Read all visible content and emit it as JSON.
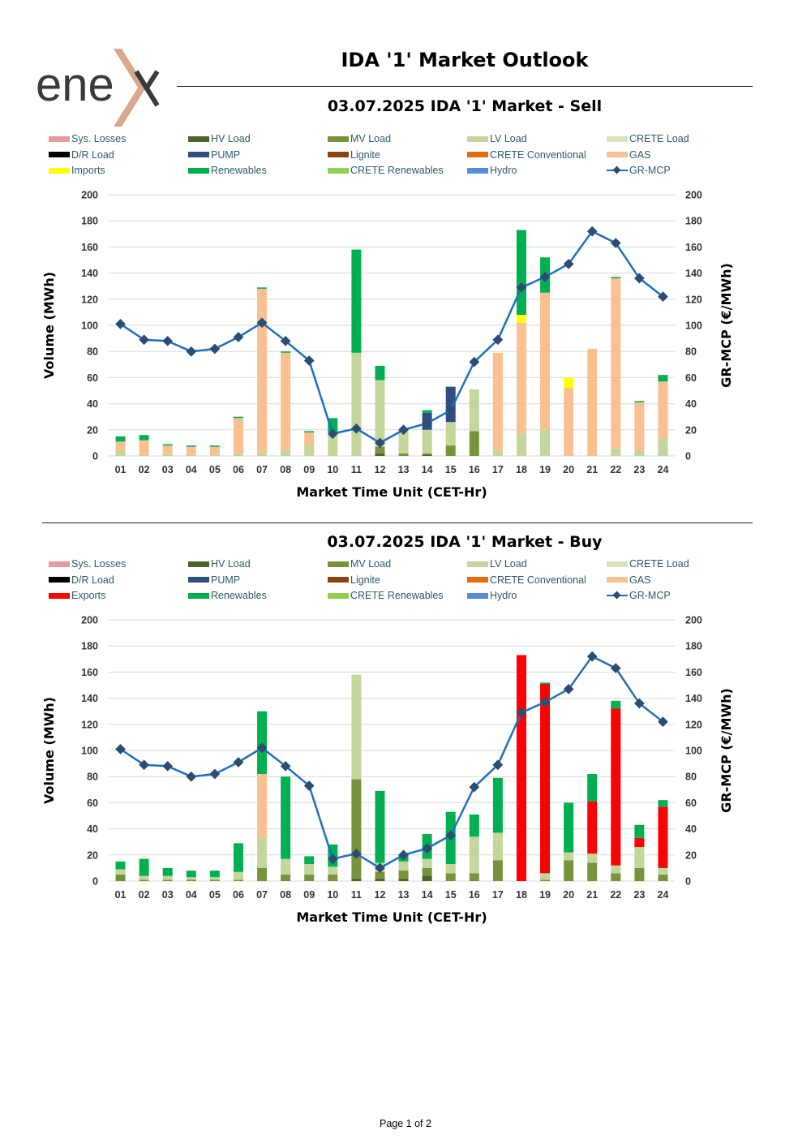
{
  "header": {
    "logo_text": "ene ",
    "title": "IDA '1' Market Outlook"
  },
  "footer": {
    "page": "Page 1 of 2"
  },
  "colors": {
    "sys_losses": "#e59c9c",
    "hv_load": "#4f6228",
    "mv_load": "#77933c",
    "lv_load": "#c3d69b",
    "crete_load": "#d7e4bd",
    "dr_load": "#000000",
    "pump": "#2f4f7f",
    "lignite": "#8b4513",
    "crete_conventional": "#e46c0a",
    "gas": "#fac090",
    "imports": "#ffff00",
    "exports": "#ff0000",
    "renewables": "#00b050",
    "crete_renewables": "#92d050",
    "hydro": "#558ed5",
    "line": "#1f6fbf",
    "marker": "#2c4d72"
  },
  "chart_data": [
    {
      "type": "bar",
      "title": "03.07.2025  IDA '1' Market - Sell",
      "xlabel": "Market Time Unit (CET-Hr)",
      "ylabel": "Volume (MWh)",
      "y2label": "GR-MCP (€/MWh)",
      "ylim": [
        0,
        200
      ],
      "yticks": [
        "0",
        "20",
        "40",
        "60",
        "80",
        "100",
        "120",
        "140",
        "160",
        "180",
        "200"
      ],
      "categories": [
        "01",
        "02",
        "03",
        "04",
        "05",
        "06",
        "07",
        "08",
        "09",
        "10",
        "11",
        "12",
        "13",
        "14",
        "15",
        "16",
        "17",
        "18",
        "19",
        "20",
        "21",
        "22",
        "23",
        "24"
      ],
      "legend": [
        {
          "label": "Sys. Losses",
          "color": "sys_losses"
        },
        {
          "label": "HV Load",
          "color": "hv_load"
        },
        {
          "label": "MV Load",
          "color": "mv_load"
        },
        {
          "label": "LV Load",
          "color": "lv_load"
        },
        {
          "label": "CRETE Load",
          "color": "crete_load"
        },
        {
          "label": "D/R Load",
          "color": "dr_load"
        },
        {
          "label": "PUMP",
          "color": "pump"
        },
        {
          "label": "Lignite",
          "color": "lignite"
        },
        {
          "label": "CRETE Conventional",
          "color": "crete_conventional"
        },
        {
          "label": "GAS",
          "color": "gas"
        },
        {
          "label": "Imports",
          "color": "imports"
        },
        {
          "label": "Renewables",
          "color": "renewables"
        },
        {
          "label": "CRETE Renewables",
          "color": "crete_renewables"
        },
        {
          "label": "Hydro",
          "color": "hydro"
        },
        {
          "label": "GR-MCP",
          "color": "line"
        }
      ],
      "series": [
        {
          "name": "HV Load",
          "color": "hv_load",
          "values": [
            0,
            0,
            0,
            0,
            0,
            0,
            0,
            0,
            0,
            0,
            0,
            2,
            0,
            1,
            0,
            0,
            0,
            0,
            0,
            0,
            0,
            0,
            0,
            0
          ]
        },
        {
          "name": "MV Load",
          "color": "mv_load",
          "values": [
            0,
            0,
            0,
            0,
            0,
            0,
            0,
            0,
            0,
            0,
            0,
            5,
            2,
            1,
            8,
            19,
            0,
            0,
            0,
            0,
            0,
            0,
            0,
            0
          ]
        },
        {
          "name": "LV Load",
          "color": "lv_load",
          "values": [
            4,
            1,
            1,
            1,
            1,
            2,
            3,
            4,
            8,
            18,
            79,
            51,
            18,
            18,
            18,
            32,
            4,
            17,
            20,
            0,
            0,
            6,
            4,
            14
          ]
        },
        {
          "name": "PUMP",
          "color": "pump",
          "values": [
            0,
            0,
            0,
            0,
            0,
            0,
            0,
            0,
            0,
            0,
            0,
            0,
            0,
            13,
            27,
            0,
            0,
            0,
            0,
            0,
            0,
            0,
            0,
            0
          ]
        },
        {
          "name": "GAS",
          "color": "gas",
          "values": [
            7,
            11,
            7,
            6,
            6,
            27,
            125,
            75,
            10,
            0,
            0,
            0,
            0,
            0,
            0,
            0,
            75,
            85,
            105,
            52,
            82,
            130,
            37,
            43
          ]
        },
        {
          "name": "Imports",
          "color": "imports",
          "values": [
            0,
            0,
            0,
            0,
            0,
            0,
            0,
            0,
            0,
            0,
            0,
            0,
            0,
            0,
            0,
            0,
            0,
            6,
            0,
            8,
            0,
            0,
            0,
            0
          ]
        },
        {
          "name": "Renewables",
          "color": "renewables",
          "values": [
            4,
            4,
            1,
            1,
            1,
            1,
            1,
            1,
            1,
            11,
            79,
            11,
            0,
            2,
            0,
            0,
            0,
            65,
            27,
            0,
            0,
            1,
            1,
            5
          ]
        }
      ],
      "line": {
        "name": "GR-MCP",
        "values": [
          101,
          89,
          88,
          80,
          82,
          91,
          102,
          88,
          73,
          17,
          21,
          10,
          20,
          25,
          35,
          72,
          89,
          129,
          137,
          147,
          172,
          163,
          136,
          122
        ]
      }
    },
    {
      "type": "bar",
      "title": "03.07.2025  IDA '1' Market - Buy",
      "xlabel": "Market Time Unit (CET-Hr)",
      "ylabel": "Volume (MWh)",
      "y2label": "GR-MCP (€/MWh)",
      "ylim": [
        0,
        200
      ],
      "yticks": [
        "0",
        "20",
        "40",
        "60",
        "80",
        "100",
        "120",
        "140",
        "160",
        "180",
        "200"
      ],
      "categories": [
        "01",
        "02",
        "03",
        "04",
        "05",
        "06",
        "07",
        "08",
        "09",
        "10",
        "11",
        "12",
        "13",
        "14",
        "15",
        "16",
        "17",
        "18",
        "19",
        "20",
        "21",
        "22",
        "23",
        "24"
      ],
      "legend": [
        {
          "label": "Sys. Losses",
          "color": "sys_losses"
        },
        {
          "label": "HV Load",
          "color": "hv_load"
        },
        {
          "label": "MV Load",
          "color": "mv_load"
        },
        {
          "label": "LV Load",
          "color": "lv_load"
        },
        {
          "label": "CRETE Load",
          "color": "crete_load"
        },
        {
          "label": "D/R Load",
          "color": "dr_load"
        },
        {
          "label": "PUMP",
          "color": "pump"
        },
        {
          "label": "Lignite",
          "color": "lignite"
        },
        {
          "label": "CRETE Conventional",
          "color": "crete_conventional"
        },
        {
          "label": "GAS",
          "color": "gas"
        },
        {
          "label": "Exports",
          "color": "exports"
        },
        {
          "label": "Renewables",
          "color": "renewables"
        },
        {
          "label": "CRETE Renewables",
          "color": "crete_renewables"
        },
        {
          "label": "Hydro",
          "color": "hydro"
        },
        {
          "label": "GR-MCP",
          "color": "line"
        }
      ],
      "series": [
        {
          "name": "HV Load",
          "color": "hv_load",
          "values": [
            0,
            0,
            0,
            0,
            0,
            0,
            0,
            0,
            0,
            0,
            2,
            2,
            2,
            4,
            0,
            0,
            0,
            0,
            0,
            0,
            0,
            0,
            0,
            0
          ]
        },
        {
          "name": "MV Load",
          "color": "mv_load",
          "values": [
            5,
            1,
            1,
            1,
            1,
            1,
            10,
            5,
            5,
            5,
            76,
            5,
            6,
            6,
            6,
            6,
            16,
            0,
            1,
            16,
            14,
            6,
            10,
            5
          ]
        },
        {
          "name": "LV Load",
          "color": "lv_load",
          "values": [
            4,
            3,
            3,
            2,
            2,
            6,
            23,
            12,
            8,
            6,
            80,
            7,
            7,
            7,
            7,
            28,
            21,
            0,
            5,
            6,
            7,
            6,
            16,
            5
          ]
        },
        {
          "name": "GAS",
          "color": "gas",
          "values": [
            0,
            0,
            0,
            0,
            0,
            0,
            49,
            0,
            0,
            0,
            0,
            0,
            0,
            0,
            0,
            0,
            0,
            0,
            0,
            0,
            0,
            0,
            0,
            0
          ]
        },
        {
          "name": "Exports",
          "color": "exports",
          "values": [
            0,
            0,
            0,
            0,
            0,
            0,
            0,
            0,
            0,
            0,
            0,
            0,
            0,
            0,
            0,
            0,
            0,
            173,
            145,
            0,
            40,
            120,
            7,
            47
          ]
        },
        {
          "name": "Renewables",
          "color": "renewables",
          "values": [
            6,
            13,
            6,
            5,
            5,
            22,
            48,
            63,
            6,
            17,
            0,
            55,
            5,
            19,
            40,
            17,
            42,
            0,
            1,
            38,
            21,
            6,
            10,
            5
          ]
        }
      ],
      "line": {
        "name": "GR-MCP",
        "values": [
          101,
          89,
          88,
          80,
          82,
          91,
          102,
          88,
          73,
          17,
          21,
          10,
          20,
          25,
          35,
          72,
          89,
          129,
          137,
          147,
          172,
          163,
          136,
          122
        ]
      }
    }
  ]
}
